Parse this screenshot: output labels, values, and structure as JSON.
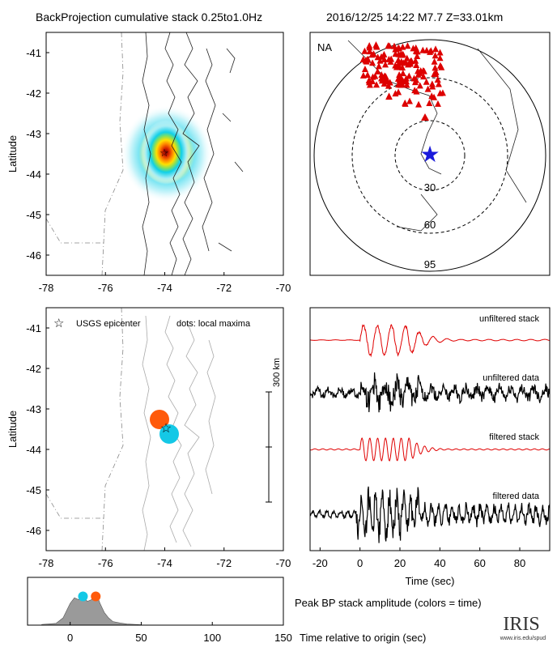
{
  "header": {
    "left_title": "BackProjection cumulative stack 0.25to1.0Hz",
    "right_title": "2016/12/25 14:22   M7.7   Z=33.01km"
  },
  "colors": {
    "station": "#dd0000",
    "epicenter_star": "#1a1adb",
    "early_max": "#ff5a0a",
    "late_max": "#14c8e6",
    "stack_trace": "#e00000",
    "data_trace": "#000000",
    "peak_fill": "#9a9a9a"
  },
  "chart_data": [
    {
      "id": "bp_map",
      "type": "heatmap",
      "title": "BackProjection cumulative stack 0.25to1.0Hz",
      "ylabel": "Latitude",
      "xlim": [
        -78,
        -70
      ],
      "ylim": [
        -46.5,
        -40.5
      ],
      "xticks": [
        "-78",
        "-76",
        "-74",
        "-72",
        "-70"
      ],
      "yticks": [
        "-41",
        "-42",
        "-43",
        "-44",
        "-45",
        "-46"
      ],
      "epicenter": {
        "lon": -73.9,
        "lat": -43.4
      },
      "peak": {
        "lon": -73.85,
        "lat": -43.35
      }
    },
    {
      "id": "station_map",
      "type": "scatter",
      "array_label": "NA",
      "rings": [
        "30",
        "60",
        "95"
      ],
      "epicenter_symbol": "star"
    },
    {
      "id": "local_maxima_map",
      "type": "scatter",
      "ylabel": "Latitude",
      "legend_star": "USGS epicenter",
      "legend_dots": "dots: local maxima",
      "scale_label": "300 km",
      "xlim": [
        -78,
        -70
      ],
      "ylim": [
        -46.5,
        -40.5
      ],
      "xticks": [
        "-78",
        "-76",
        "-74",
        "-72",
        "-70"
      ],
      "yticks": [
        "-41",
        "-42",
        "-43",
        "-44",
        "-45",
        "-46"
      ],
      "epicenter": {
        "lon": -73.9,
        "lat": -43.4
      },
      "maxima": [
        {
          "lon": -74.1,
          "lat": -43.2,
          "time_sec": 18
        },
        {
          "lon": -73.6,
          "lat": -43.6,
          "time_sec": 9
        }
      ]
    },
    {
      "id": "traces",
      "type": "line",
      "xlabel": "Time (sec)",
      "xlim": [
        -25,
        95
      ],
      "xticks": [
        "-20",
        "0",
        "20",
        "40",
        "60",
        "80"
      ],
      "labels": [
        "unfiltered stack",
        "unfiltered data",
        "filtered stack",
        "filtered data"
      ]
    },
    {
      "id": "peak_amp",
      "type": "area",
      "title": "Peak BP stack amplitude (colors = time)",
      "xlabel": "Time relative to origin (sec)",
      "xlim": [
        -30,
        150
      ],
      "xticks": [
        "0",
        "50",
        "100",
        "150"
      ],
      "x": [
        -20,
        -10,
        -5,
        0,
        3,
        6,
        9,
        12,
        15,
        18,
        21,
        24,
        27,
        30,
        35,
        40,
        50
      ],
      "values": [
        0.02,
        0.05,
        0.2,
        0.6,
        0.75,
        0.7,
        0.85,
        0.65,
        0.7,
        0.9,
        0.6,
        0.35,
        0.2,
        0.1,
        0.06,
        0.03,
        0.01
      ],
      "maxima_times": [
        9,
        18
      ]
    }
  ],
  "logo": {
    "text": "IRIS",
    "url_text": "www.iris.edu/spud"
  }
}
